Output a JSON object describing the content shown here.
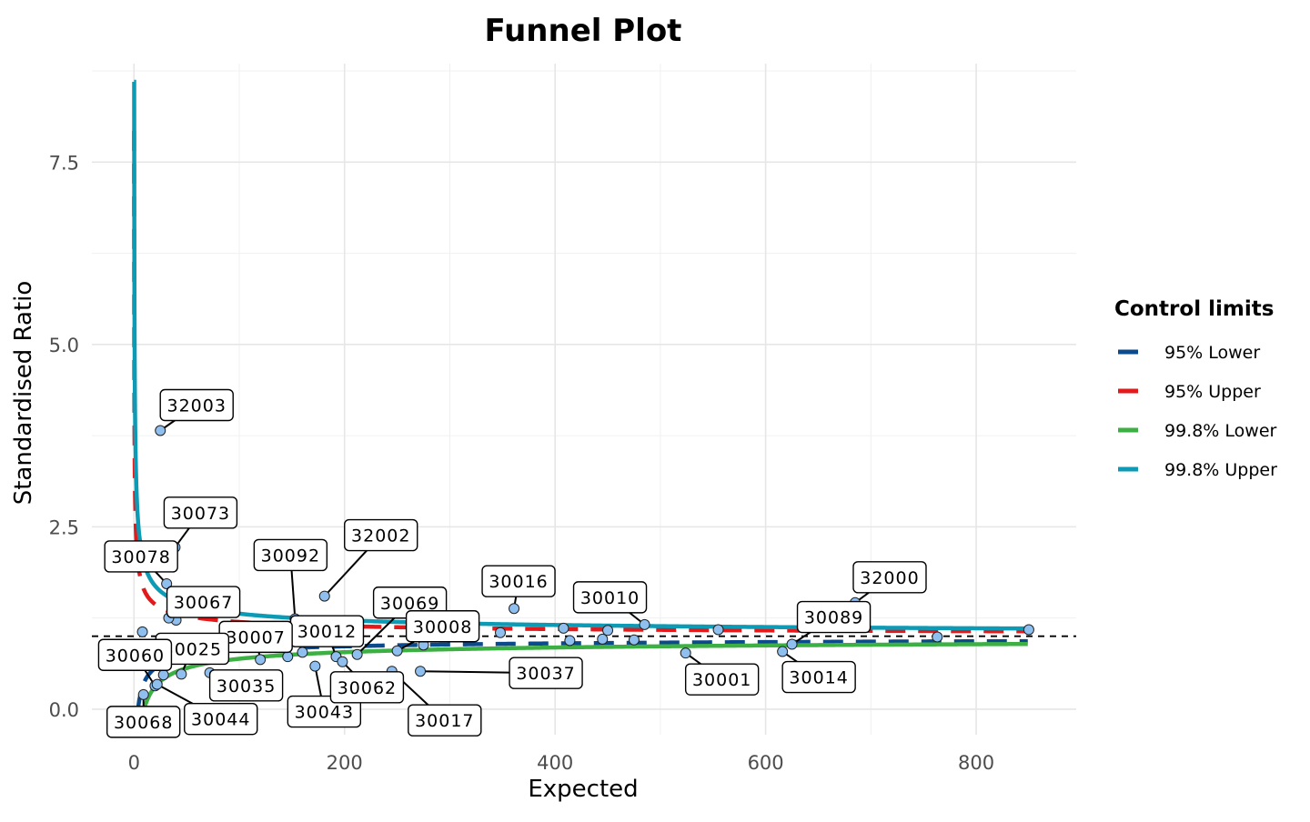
{
  "chart_data": {
    "type": "scatter",
    "title": "Funnel Plot",
    "xlabel": "Expected",
    "ylabel": "Standardised Ratio",
    "xlim": [
      -40,
      895
    ],
    "ylim": [
      -0.35,
      8.85
    ],
    "x_ticks": [
      0,
      200,
      400,
      600,
      800
    ],
    "y_ticks": [
      0.0,
      2.5,
      5.0,
      7.5
    ],
    "x_tick_labels": [
      "0",
      "200",
      "400",
      "600",
      "800"
    ],
    "y_tick_labels": [
      "0.0",
      "2.5",
      "5.0",
      "7.5"
    ],
    "grid": true,
    "target_line": 1.0,
    "point_color": "#8fbfef",
    "legend": {
      "title": "Control limits",
      "position": "right",
      "entries": [
        {
          "label": "95% Lower",
          "color": "#0b4a8c",
          "dash": true
        },
        {
          "label": "95% Upper",
          "color": "#e31a1c",
          "dash": true
        },
        {
          "label": "99.8% Lower",
          "color": "#3cb043",
          "dash": false
        },
        {
          "label": "99.8% Upper",
          "color": "#0c9ab5",
          "dash": false
        }
      ]
    },
    "points": [
      {
        "x": 25,
        "y": 3.82,
        "label": "32003"
      },
      {
        "x": 39,
        "y": 2.22,
        "label": "30073"
      },
      {
        "x": 31,
        "y": 1.72,
        "label": "30078"
      },
      {
        "x": 181,
        "y": 1.55,
        "label": "32002"
      },
      {
        "x": 361,
        "y": 1.38,
        "label": "30016"
      },
      {
        "x": 685,
        "y": 1.46,
        "label": "32000"
      },
      {
        "x": 485,
        "y": 1.16,
        "label": "30010"
      },
      {
        "x": 40,
        "y": 1.22,
        "label": "30067"
      },
      {
        "x": 33,
        "y": 1.25,
        "label": ""
      },
      {
        "x": 8,
        "y": 1.06,
        "label": ""
      },
      {
        "x": 153,
        "y": 1.24,
        "label": "30092"
      },
      {
        "x": 212,
        "y": 0.75,
        "label": "30069"
      },
      {
        "x": 250,
        "y": 0.8,
        "label": "30008"
      },
      {
        "x": 192,
        "y": 0.72,
        "label": "30012"
      },
      {
        "x": 120,
        "y": 0.68,
        "label": "30007"
      },
      {
        "x": 45,
        "y": 0.48,
        "label": "30025"
      },
      {
        "x": 20,
        "y": 0.32,
        "label": "30060"
      },
      {
        "x": 72,
        "y": 0.5,
        "label": "30035"
      },
      {
        "x": 172,
        "y": 0.59,
        "label": "30043"
      },
      {
        "x": 198,
        "y": 0.65,
        "label": "30062"
      },
      {
        "x": 245,
        "y": 0.52,
        "label": "30017"
      },
      {
        "x": 272,
        "y": 0.52,
        "label": "30037"
      },
      {
        "x": 524,
        "y": 0.77,
        "label": "30001"
      },
      {
        "x": 616,
        "y": 0.79,
        "label": "30014"
      },
      {
        "x": 625,
        "y": 0.89,
        "label": "30089"
      },
      {
        "x": 9,
        "y": 0.2,
        "label": "30068"
      },
      {
        "x": 22,
        "y": 0.34,
        "label": "30044"
      },
      {
        "x": 28,
        "y": 0.47,
        "label": ""
      },
      {
        "x": 146,
        "y": 0.72,
        "label": ""
      },
      {
        "x": 160,
        "y": 0.78,
        "label": ""
      },
      {
        "x": 275,
        "y": 0.88,
        "label": ""
      },
      {
        "x": 348,
        "y": 1.05,
        "label": ""
      },
      {
        "x": 408,
        "y": 1.11,
        "label": ""
      },
      {
        "x": 414,
        "y": 0.94,
        "label": ""
      },
      {
        "x": 445,
        "y": 0.96,
        "label": ""
      },
      {
        "x": 450,
        "y": 1.08,
        "label": ""
      },
      {
        "x": 475,
        "y": 0.95,
        "label": ""
      },
      {
        "x": 555,
        "y": 1.09,
        "label": ""
      },
      {
        "x": 763,
        "y": 0.99,
        "label": ""
      },
      {
        "x": 850,
        "y": 1.09,
        "label": ""
      }
    ]
  }
}
